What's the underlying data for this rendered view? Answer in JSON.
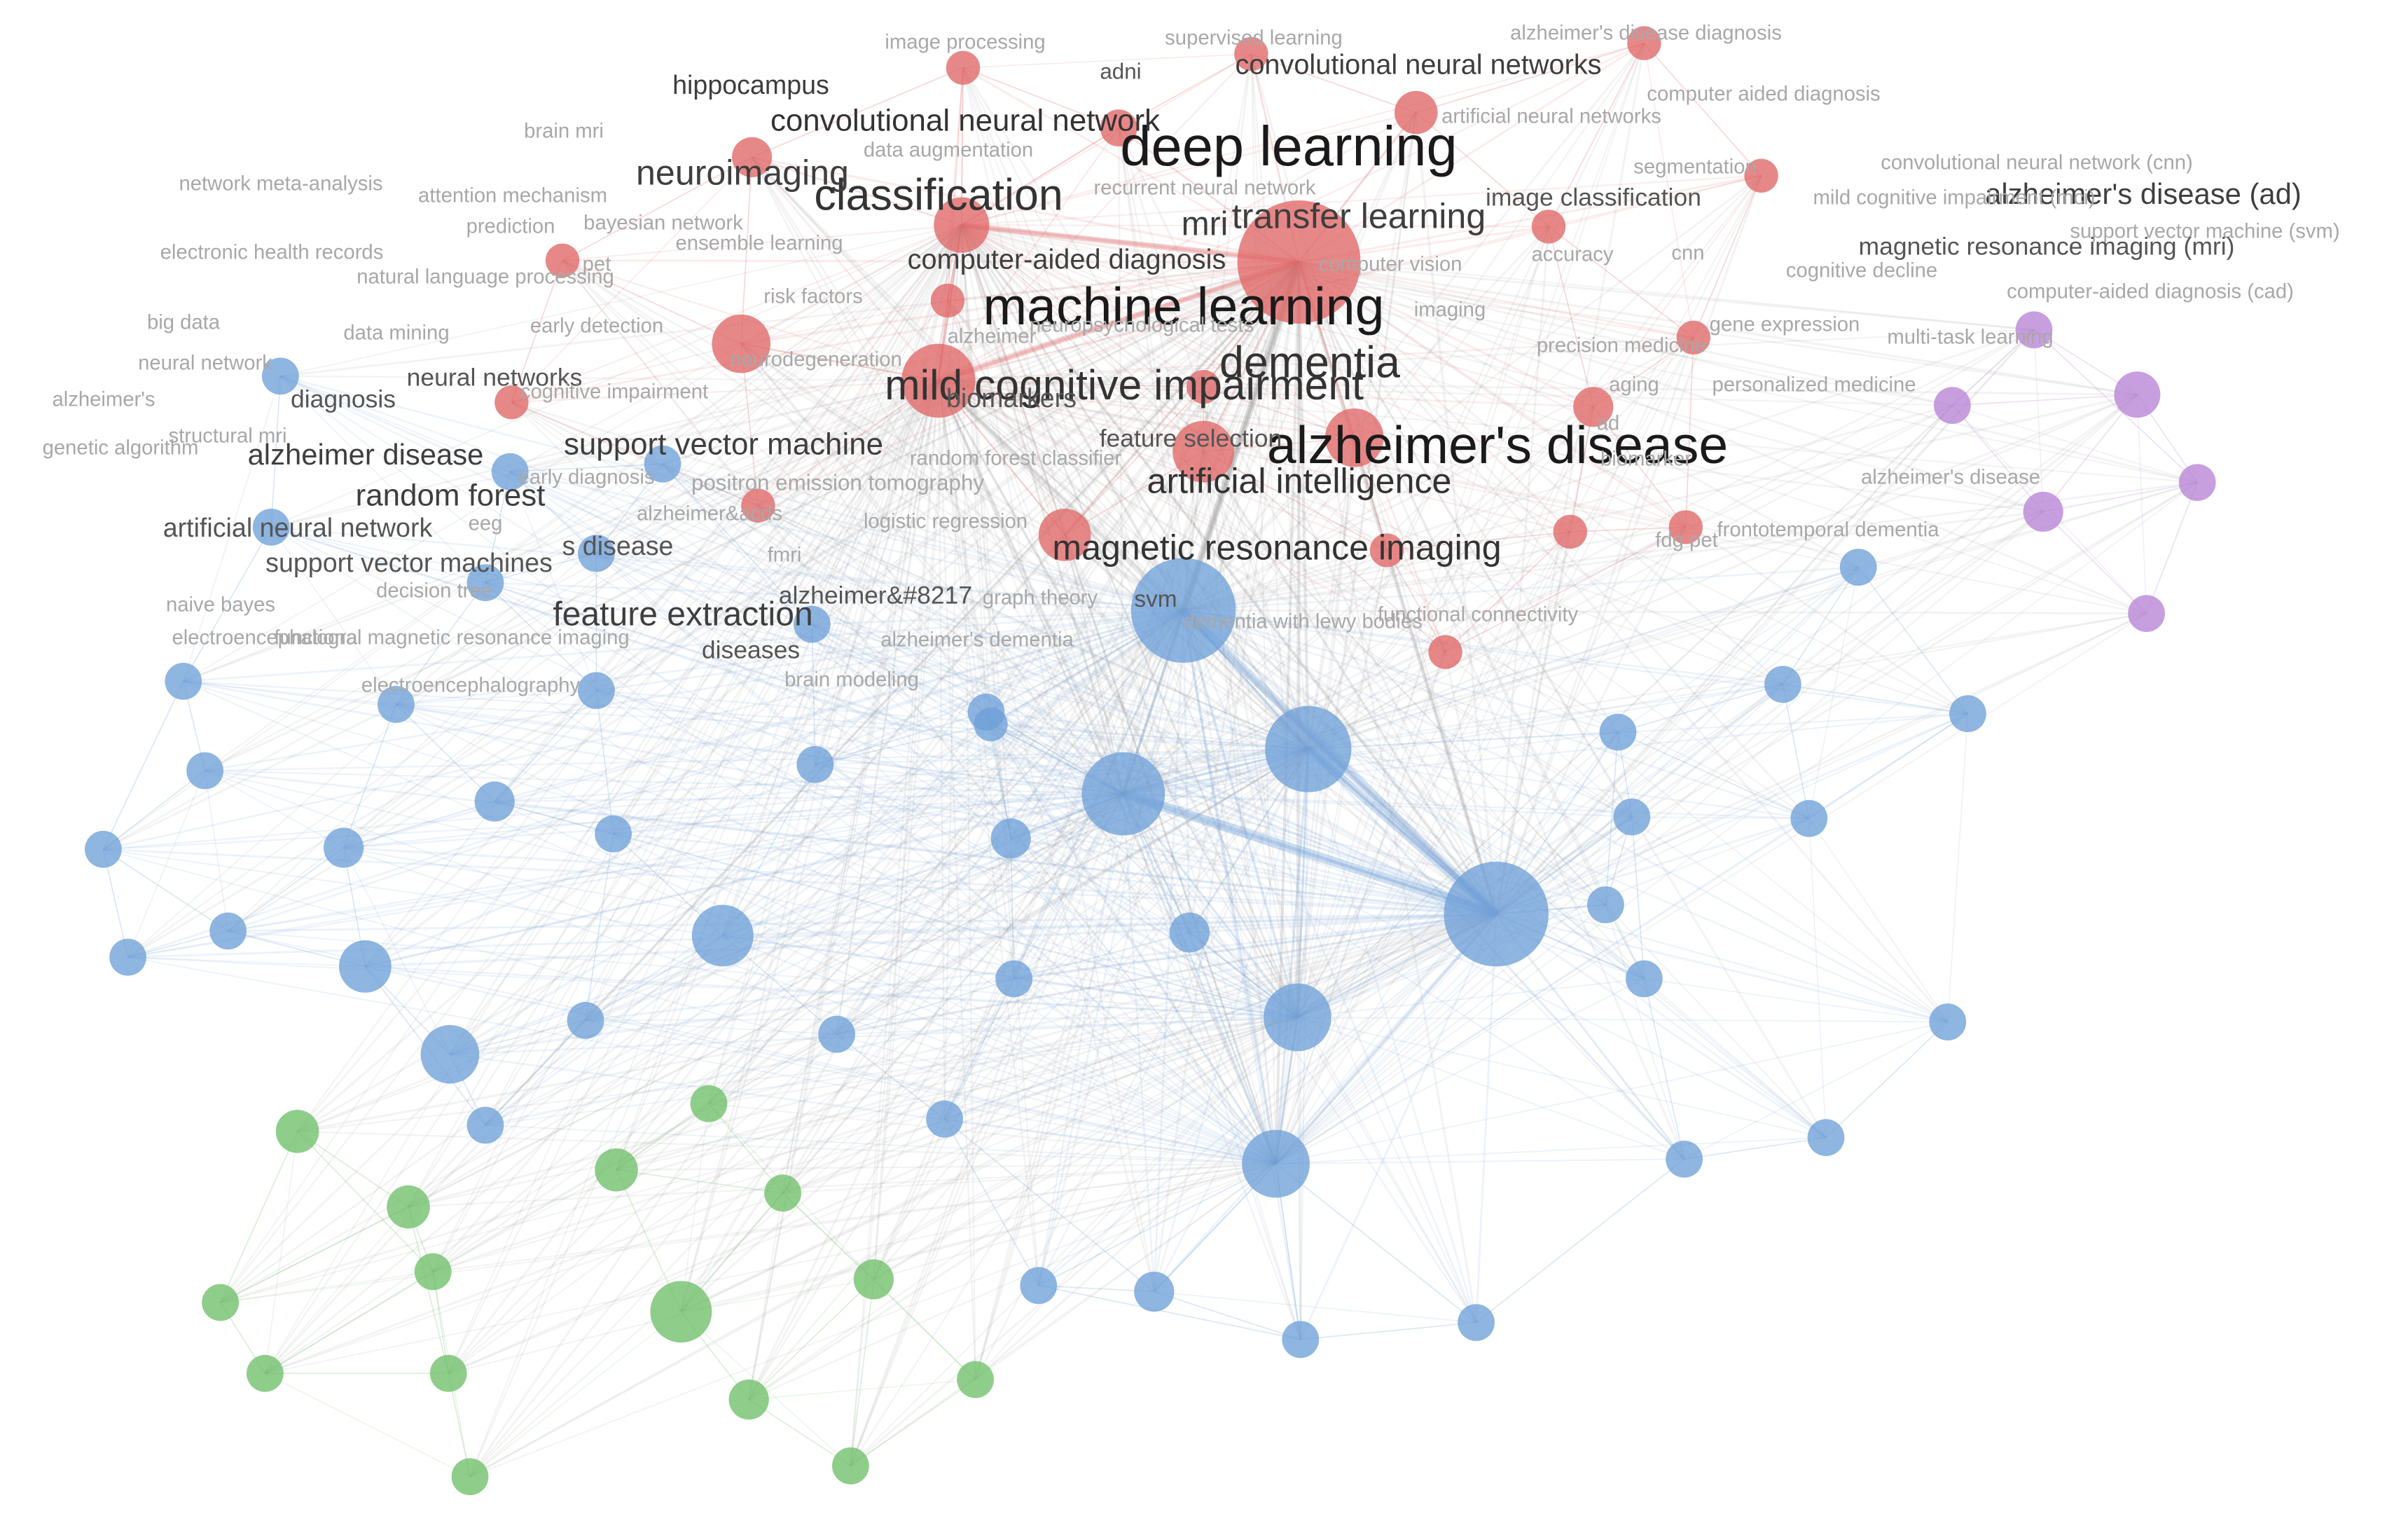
{
  "colors": {
    "red": "#e06666",
    "blue": "#6fa0d8",
    "green": "#6fbf6a",
    "purple": "#b784d6",
    "edge_grey": "#9a9a9a"
  },
  "clusters": {
    "red": [
      {
        "id": "deep-learning",
        "label": "deep learning",
        "weight": 10
      },
      {
        "id": "convolutional-neural-network",
        "label": "convolutional neural network",
        "weight": 6
      },
      {
        "id": "classification",
        "label": "classification",
        "weight": 7
      },
      {
        "id": "neuroimaging",
        "label": "neuroimaging",
        "weight": 5
      },
      {
        "id": "mri",
        "label": "mri",
        "weight": 5
      },
      {
        "id": "transfer-learning",
        "label": "transfer learning",
        "weight": 5
      },
      {
        "id": "hippocampus",
        "label": "hippocampus",
        "weight": 4
      },
      {
        "id": "convolutional-neural-networks",
        "label": "convolutional neural networks",
        "weight": 4
      },
      {
        "id": "computer-aided-diagnosis-2",
        "label": "computer-aided diagnosis",
        "weight": 4
      },
      {
        "id": "image-classification",
        "label": "image classification",
        "weight": 3
      },
      {
        "id": "adni",
        "label": "adni",
        "weight": 3
      },
      {
        "id": "image-processing",
        "label": "image processing",
        "weight": 2
      },
      {
        "id": "supervised-learning",
        "label": "supervised learning",
        "weight": 2
      },
      {
        "id": "alzheimers-disease-diagnosis",
        "label": "alzheimer's disease diagnosis",
        "weight": 2
      },
      {
        "id": "computer-aided-diagnosis",
        "label": "computer aided diagnosis",
        "weight": 2
      },
      {
        "id": "artificial-neural-networks",
        "label": "artificial neural networks",
        "weight": 2
      },
      {
        "id": "brain-mri",
        "label": "brain mri",
        "weight": 2
      },
      {
        "id": "data-augmentation",
        "label": "data augmentation",
        "weight": 2
      },
      {
        "id": "segmentation",
        "label": "segmentation",
        "weight": 2
      },
      {
        "id": "recurrent-neural-network",
        "label": "recurrent neural network",
        "weight": 2
      },
      {
        "id": "attention-mechanism",
        "label": "attention mechanism",
        "weight": 2
      },
      {
        "id": "ensemble-learning",
        "label": "ensemble learning",
        "weight": 2
      },
      {
        "id": "accuracy",
        "label": "accuracy",
        "weight": 2
      },
      {
        "id": "cnn",
        "label": "cnn",
        "weight": 2
      },
      {
        "id": "computer-vision",
        "label": "computer vision",
        "weight": 2
      },
      {
        "id": "imaging",
        "label": "imaging",
        "weight": 2
      }
    ],
    "blue": [
      {
        "id": "machine-learning",
        "label": "machine learning",
        "weight": 9
      },
      {
        "id": "alzheimers-disease",
        "label": "alzheimer's disease",
        "weight": 10
      },
      {
        "id": "dementia",
        "label": "dementia",
        "weight": 7
      },
      {
        "id": "mild-cognitive-impairment",
        "label": "mild cognitive impairment",
        "weight": 7
      },
      {
        "id": "support-vector-machine",
        "label": "support vector machine",
        "weight": 5
      },
      {
        "id": "artificial-intelligence",
        "label": "artificial intelligence",
        "weight": 6
      },
      {
        "id": "magnetic-resonance-imaging",
        "label": "magnetic resonance imaging",
        "weight": 6
      },
      {
        "id": "alzheimer-disease",
        "label": "alzheimer disease",
        "weight": 5
      },
      {
        "id": "random-forest",
        "label": "random forest",
        "weight": 5
      },
      {
        "id": "biomarkers",
        "label": "biomarkers",
        "weight": 3
      },
      {
        "id": "diagnosis",
        "label": "diagnosis",
        "weight": 3
      },
      {
        "id": "neural-networks",
        "label": "neural networks",
        "weight": 3
      },
      {
        "id": "feature-selection",
        "label": "feature selection",
        "weight": 3
      },
      {
        "id": "svm",
        "label": "svm",
        "weight": 3
      },
      {
        "id": "network-meta-analysis",
        "label": "network meta-analysis",
        "weight": 2
      },
      {
        "id": "prediction",
        "label": "prediction",
        "weight": 2
      },
      {
        "id": "bayesian-network",
        "label": "bayesian network",
        "weight": 2
      },
      {
        "id": "electronic-health-records",
        "label": "electronic health records",
        "weight": 2
      },
      {
        "id": "pet",
        "label": "pet",
        "weight": 2
      },
      {
        "id": "natural-language-processing",
        "label": "natural language processing",
        "weight": 2
      },
      {
        "id": "risk-factors",
        "label": "risk factors",
        "weight": 2
      },
      {
        "id": "big-data",
        "label": "big data",
        "weight": 2
      },
      {
        "id": "data-mining",
        "label": "data mining",
        "weight": 2
      },
      {
        "id": "early-detection",
        "label": "early detection",
        "weight": 2
      },
      {
        "id": "neuropsychological-tests",
        "label": "neuropsychological tests",
        "weight": 2
      },
      {
        "id": "alzheimer",
        "label": "alzheimer",
        "weight": 2
      },
      {
        "id": "neural-network",
        "label": "neural network",
        "weight": 2
      },
      {
        "id": "neurodegeneration",
        "label": "neurodegeneration",
        "weight": 2
      },
      {
        "id": "alzheimers",
        "label": "alzheimer's",
        "weight": 2
      },
      {
        "id": "cognitive-impairment",
        "label": "cognitive impairment",
        "weight": 2
      },
      {
        "id": "structural-mri",
        "label": "structural mri",
        "weight": 2
      },
      {
        "id": "genetic-algorithm",
        "label": "genetic algorithm",
        "weight": 2
      },
      {
        "id": "random-forest-classifier",
        "label": "random forest classifier",
        "weight": 2
      },
      {
        "id": "early-diagnosis",
        "label": "early diagnosis",
        "weight": 2
      },
      {
        "id": "positron-emission-tomography",
        "label": "positron emission tomography",
        "weight": 2
      },
      {
        "id": "eeg",
        "label": "eeg",
        "weight": 2
      },
      {
        "id": "logistic-regression",
        "label": "logistic regression",
        "weight": 2
      },
      {
        "id": "graph-theory",
        "label": "graph theory",
        "weight": 2
      },
      {
        "id": "dementia-with-lewy-bodies",
        "label": "dementia with lewy bodies",
        "weight": 2
      },
      {
        "id": "functional-connectivity",
        "label": "functional connectivity",
        "weight": 2
      },
      {
        "id": "fdg-pet",
        "label": "fdg pet",
        "weight": 2
      },
      {
        "id": "frontotemporal-dementia",
        "label": "frontotemporal dementia",
        "weight": 2
      },
      {
        "id": "alzheimers-disease-2",
        "label": "alzheimer's disease",
        "weight": 2
      },
      {
        "id": "biomarker",
        "label": "biomarker",
        "weight": 2
      },
      {
        "id": "ad",
        "label": "ad",
        "weight": 2
      },
      {
        "id": "precision-medicine",
        "label": "precision medicine",
        "weight": 2
      },
      {
        "id": "gene-expression",
        "label": "gene expression",
        "weight": 2
      },
      {
        "id": "multi-task-learning",
        "label": "multi-task learning",
        "weight": 2
      },
      {
        "id": "aging",
        "label": "aging",
        "weight": 2
      },
      {
        "id": "personalized-medicine",
        "label": "personalized medicine",
        "weight": 2
      },
      {
        "id": "cognitive-decline",
        "label": "cognitive decline",
        "weight": 2
      }
    ],
    "green": [
      {
        "id": "feature-extraction",
        "label": "feature extraction",
        "weight": 5
      },
      {
        "id": "artificial-neural-network",
        "label": "artificial neural network",
        "weight": 3
      },
      {
        "id": "support-vector-machines",
        "label": "support vector machines",
        "weight": 3
      },
      {
        "id": "s-disease",
        "label": "s disease",
        "weight": 3
      },
      {
        "id": "alzheimer-8217",
        "label": "alzheimer&#8217",
        "weight": 3
      },
      {
        "id": "diseases",
        "label": "diseases",
        "weight": 3
      },
      {
        "id": "alzheimers-and-s",
        "label": "alzheimer&acds",
        "weight": 2
      },
      {
        "id": "fmri",
        "label": "fmri",
        "weight": 2
      },
      {
        "id": "decision-tree",
        "label": "decision tree",
        "weight": 2
      },
      {
        "id": "naive-bayes",
        "label": "naive bayes",
        "weight": 2
      },
      {
        "id": "electroencephalography-2",
        "label": "electroencephalogra",
        "weight": 2
      },
      {
        "id": "functional-magnetic-resonance-imaging",
        "label": "functional magnetic resonance imaging",
        "weight": 2
      },
      {
        "id": "alzheimers-dementia",
        "label": "alzheimer's dementia",
        "weight": 2
      },
      {
        "id": "electroencephalography",
        "label": "electroencephalography",
        "weight": 2
      },
      {
        "id": "brain-modeling",
        "label": "brain modeling",
        "weight": 2
      }
    ],
    "purple": [
      {
        "id": "alzheimers-disease-ad",
        "label": "alzheimer's disease (ad)",
        "weight": 4
      },
      {
        "id": "convolutional-neural-network-cnn",
        "label": "convolutional neural network (cnn)",
        "weight": 2
      },
      {
        "id": "mild-cognitive-impairment-mci",
        "label": "mild cognitive impairment (mci)",
        "weight": 2
      },
      {
        "id": "support-vector-machine-svm",
        "label": "support vector machine (svm)",
        "weight": 2
      },
      {
        "id": "magnetic-resonance-imaging-mri",
        "label": "magnetic resonance imaging (mri)",
        "weight": 3
      },
      {
        "id": "computer-aided-diagnosis-cad",
        "label": "computer-aided diagnosis (cad)",
        "weight": 2
      }
    ]
  }
}
